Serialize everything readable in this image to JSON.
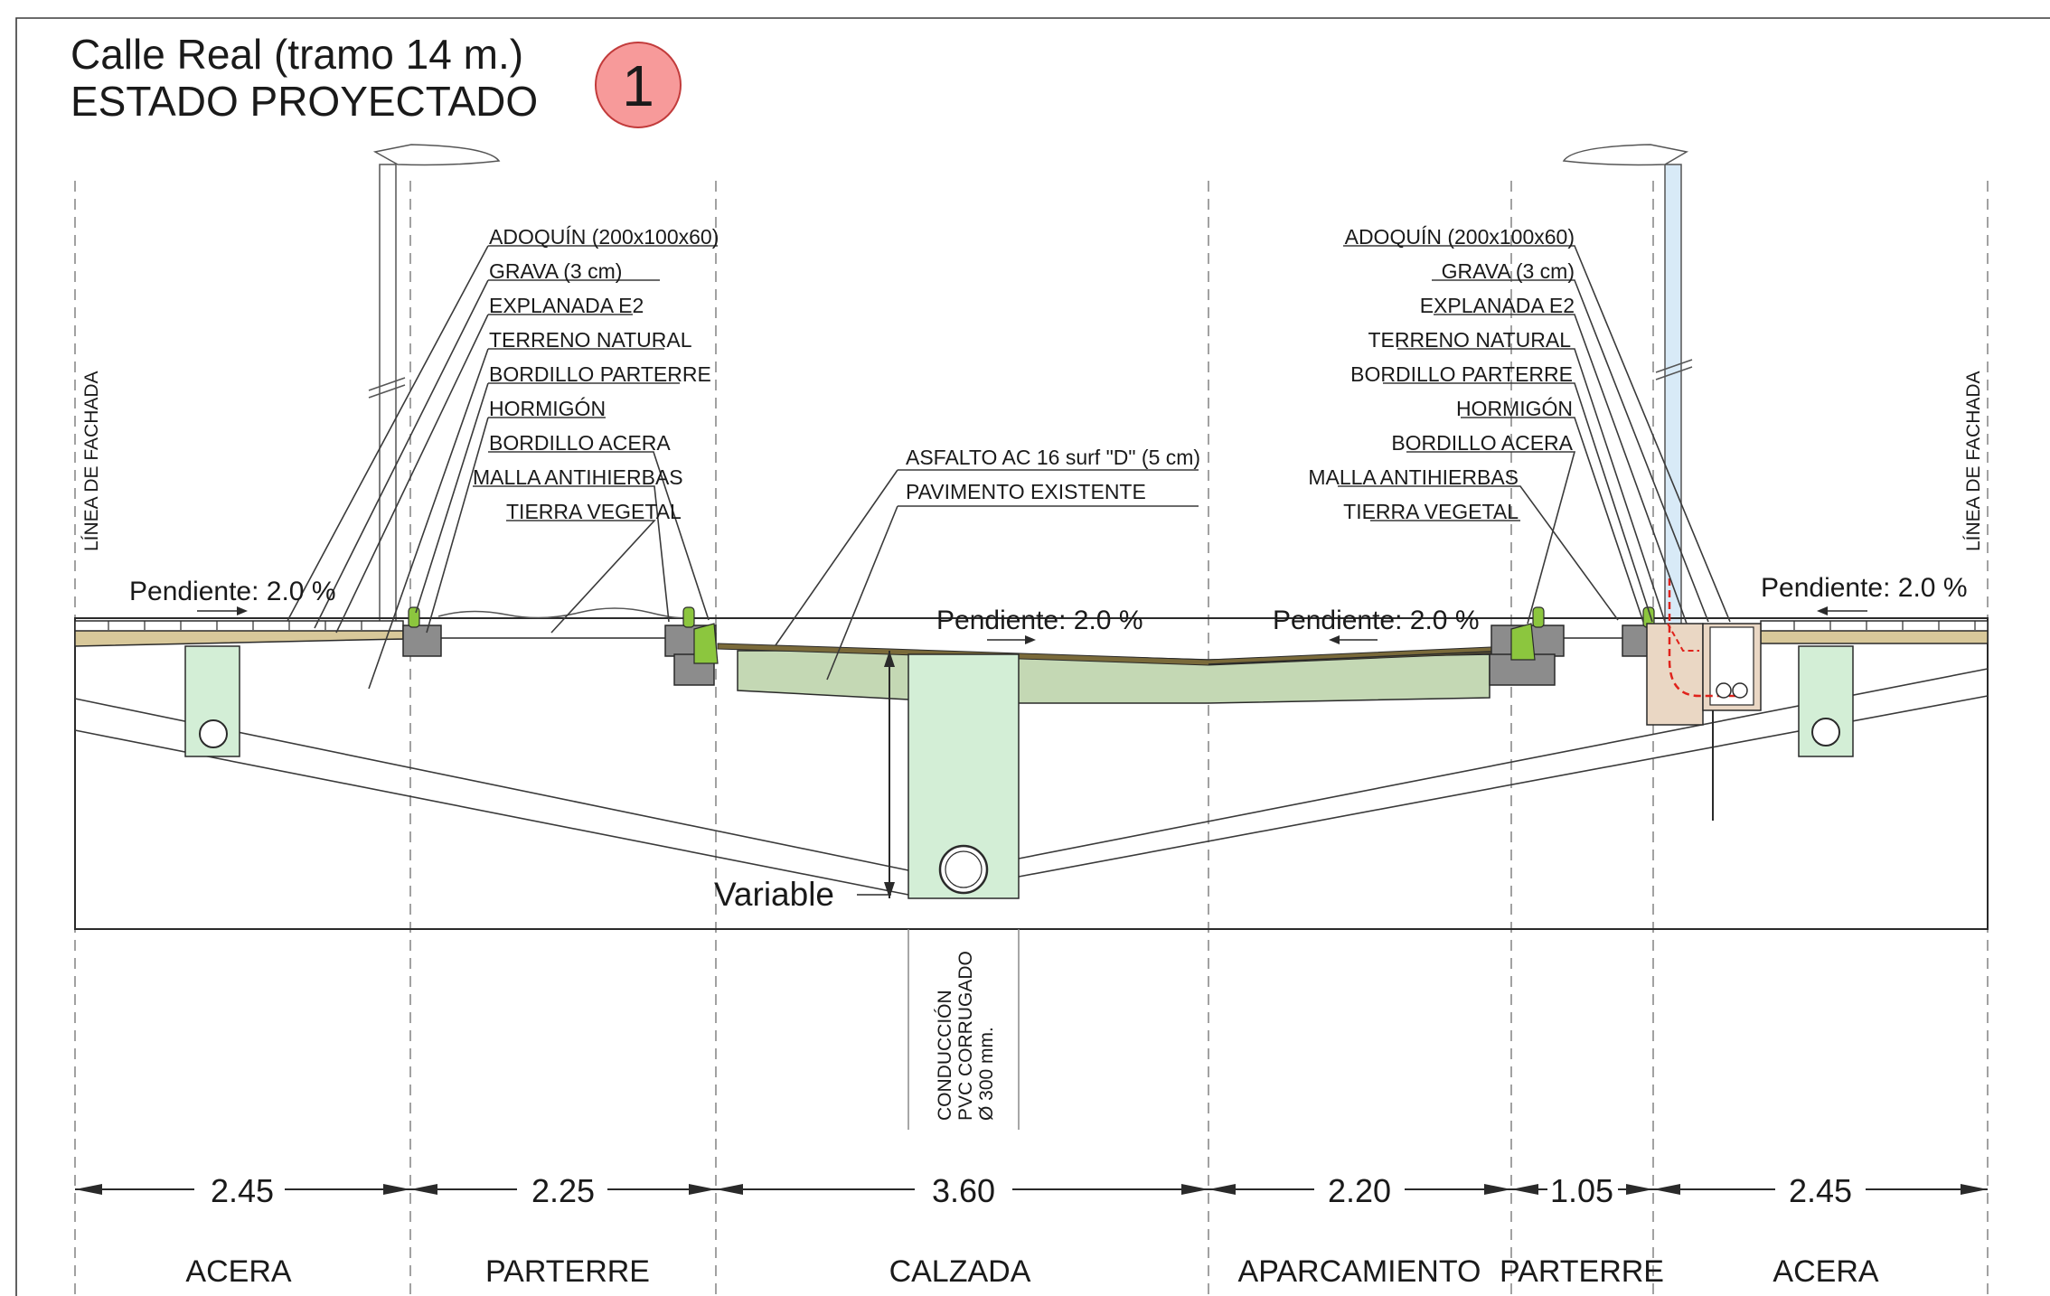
{
  "title": {
    "line1": "Calle  Real  (tramo 14 m.)",
    "line2": "ESTADO  PROYECTADO",
    "badge": "1"
  },
  "facade_label": "LÍNEA  DE  FACHADA",
  "labels_left": [
    "ADOQUÍN  (200x100x60)",
    "GRAVA  (3 cm)",
    "EXPLANADA E2",
    "TERRENO NATURAL",
    "BORDILLO PARTERRE",
    "HORMIGÓN",
    "BORDILLO ACERA",
    "MALLA ANTIHIERBAS",
    "TIERRA VEGETAL"
  ],
  "labels_right": [
    "ADOQUÍN  (200x100x60)",
    "GRAVA  (3 cm)",
    "EXPLANADA E2",
    "TERRENO NATURAL",
    "BORDILLO PARTERRE",
    "HORMIGÓN",
    "BORDILLO ACERA",
    "MALLA ANTIHIERBAS",
    "TIERRA VEGETAL"
  ],
  "labels_center": [
    "ASFALTO  AC 16 surf \"D\"  (5 cm)",
    "PAVIMENTO  EXISTENTE"
  ],
  "slopes": {
    "left_sidewalk": "Pendiente: 2.0 %",
    "road_left": "Pendiente: 2.0 %",
    "road_right": "Pendiente: 2.0 %",
    "right_sidewalk": "Pendiente: 2.0 %"
  },
  "variable_label": "Variable",
  "conduit_label": [
    "CONDUCCIÓN",
    "PVC  CORRUGADO",
    "Ø 300 mm."
  ],
  "dimensions": [
    "2.45",
    "2.25",
    "3.60",
    "2.20",
    "1.05",
    "2.45"
  ],
  "zones": [
    "ACERA",
    "PARTERRE",
    "CALZADA",
    "APARCAMIENTO",
    "PARTERRE",
    "ACERA"
  ],
  "colors": {
    "badge": "#f79a9a",
    "paving": "#d8c89a",
    "asphalt": "#7a6a3a",
    "existing_pavement": "#c4d8b4",
    "conduit_trench": "#d3eed6",
    "curb_grey": "#8c8c8c",
    "curb_green": "#8cc63e",
    "electric_box": "#ead7c4",
    "wiring": "#e0221b",
    "lamp_post_right": "#d8eaf7"
  }
}
